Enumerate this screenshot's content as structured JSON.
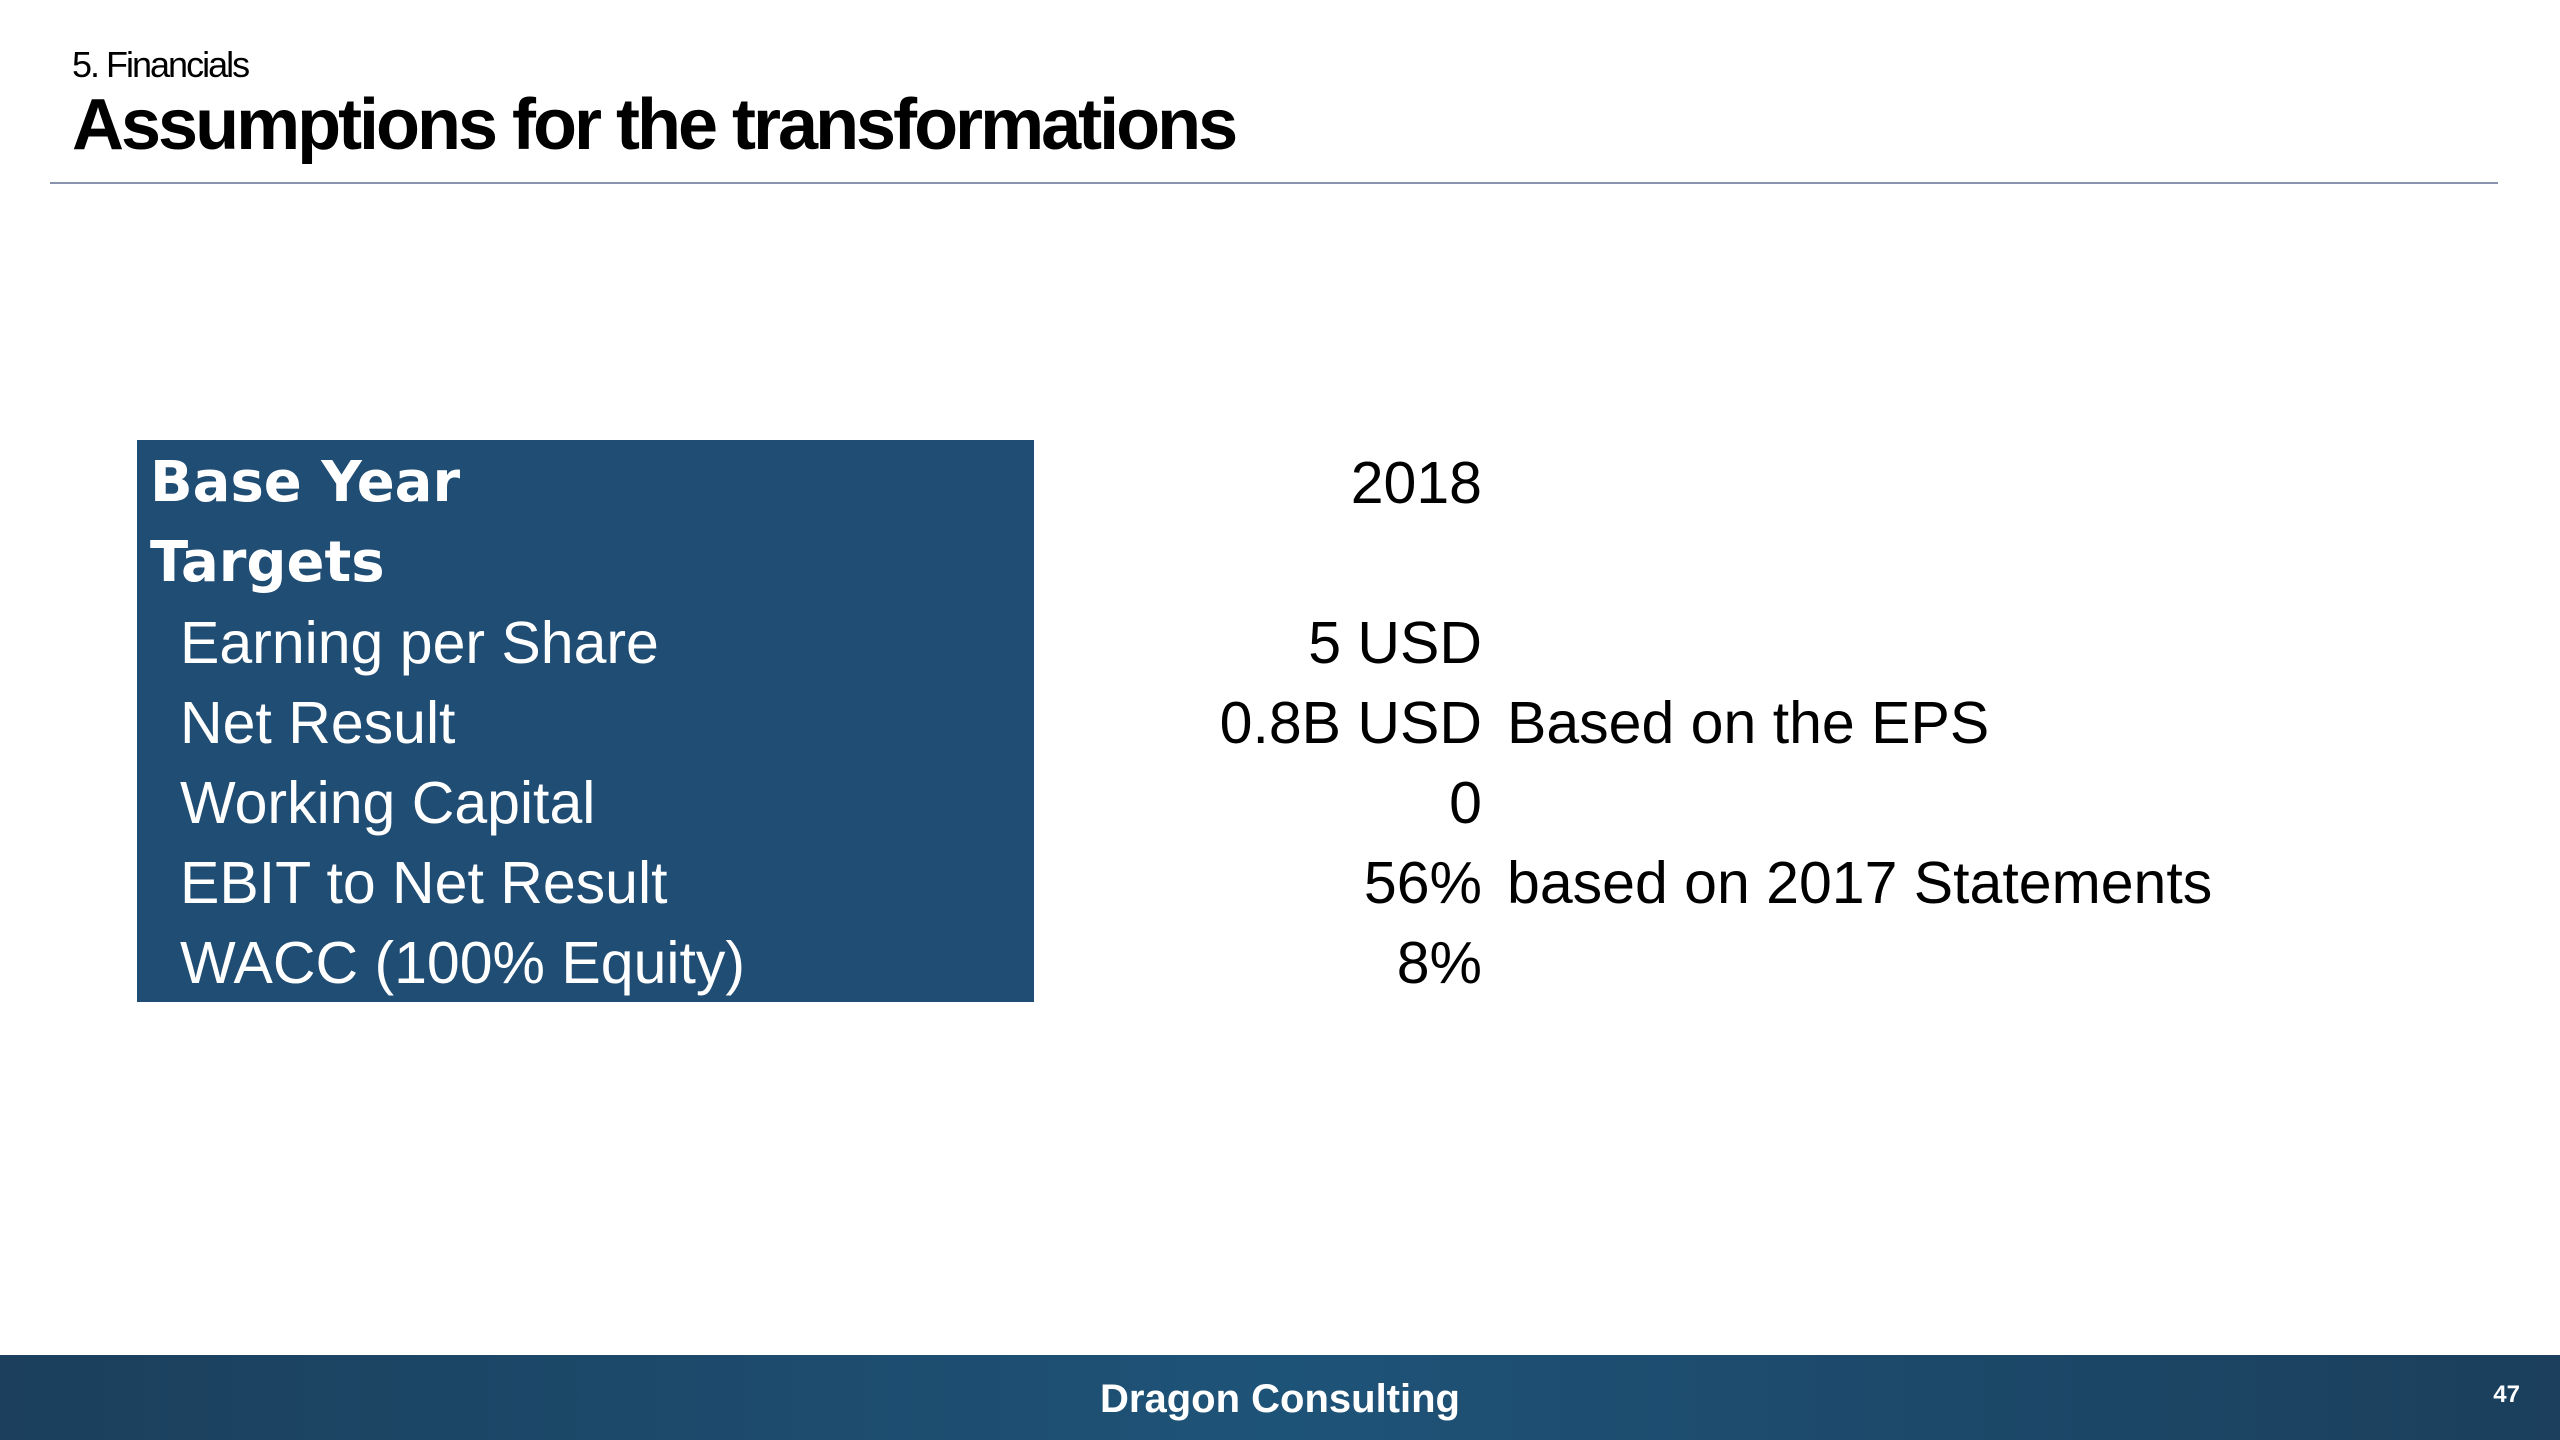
{
  "header": {
    "section": "5. Financials",
    "title": "Assumptions for the transformations"
  },
  "assumptions": [
    {
      "label": "Base Year",
      "value": "2018",
      "note": ""
    },
    {
      "label": "Targets",
      "value": "",
      "note": ""
    },
    {
      "label": "Earning per Share",
      "value": "5 USD",
      "note": ""
    },
    {
      "label": "Net Result",
      "value": "0.8B USD",
      "note": "Based on the EPS"
    },
    {
      "label": "Working Capital",
      "value": "0",
      "note": ""
    },
    {
      "label": "EBIT to Net Result",
      "value": "56%",
      "note": "based on 2017 Statements"
    },
    {
      "label": "WACC (100% Equity)",
      "value": "8%",
      "note": ""
    }
  ],
  "footer": {
    "brand": "Dragon Consulting",
    "page_number": "47"
  },
  "colors": {
    "label_panel": "#204d74",
    "footer": "#1e5378",
    "rule": "#8a93ad"
  }
}
